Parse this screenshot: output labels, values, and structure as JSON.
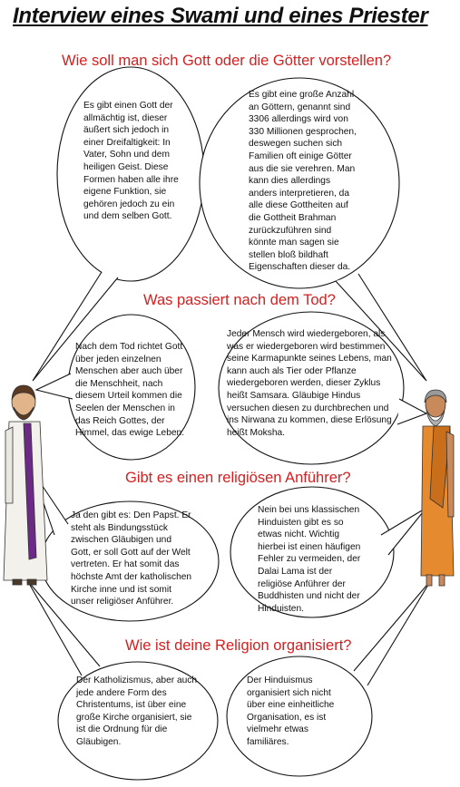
{
  "title": "Interview eines Swami und eines Priester",
  "questions": [
    "Wie soll man sich Gott oder die Götter vorstellen?",
    "Was passiert nach dem Tod?",
    "Gibt es einen religiösen Anführer?",
    "Wie ist deine Religion organisiert?"
  ],
  "answers": {
    "priest_god": "Es gibt einen Gott der allmächtig ist, dieser äußert sich jedoch in einer Dreifaltigkeit: In Vater, Sohn und dem heiligen Geist. Diese Formen haben alle ihre eigene Funktion, sie gehören jedoch zu ein und dem selben Gott.",
    "swami_god": "Es gibt eine große Anzahl an Göttern, genannt sind 3306 allerdings wird von 330 Millionen gesprochen, deswegen suchen sich Familien oft einige Götter aus die sie verehren. Man kann dies allerdings anders interpretieren, da alle diese Gottheiten auf die Gottheit Brahman zurückzuführen sind könnte man sagen sie stellen bloß bildhaft Eigenschaften dieser da.",
    "priest_death": "Nach dem Tod richtet Gott über jeden einzelnen Menschen aber auch über die Menschheit, nach diesem Urteil kommen die Seelen der Menschen in das Reich Gottes, der Himmel, das ewige Leben.",
    "swami_death": "Jeder Mensch wird wiedergeboren, als was er wiedergeboren wird bestimmen seine Karmapunkte seines Lebens, man kann auch als Tier oder Pflanze wiedergeboren werden, dieser Zyklus heißt Samsara. Gläubige Hindus versuchen diesen zu durchbrechen und ins Nirwana zu kommen, diese Erlösung heißt Moksha.",
    "priest_leader": "Ja den gibt es: Den Papst. Er steht als Bindungsstück zwischen Gläubigen und Gott, er soll Gott auf der Welt vertreten. Er hat somit das höchste Amt der katholischen Kirche inne und ist somit unser religiöser Anführer.",
    "swami_leader": "Nein bei uns klassischen Hinduisten gibt es so etwas nicht. Wichtig hierbei ist einen häufigen Fehler zu vermeiden, der Dalai Lama ist der religiöse Anführer der Buddhisten und nicht der Hinduisten.",
    "priest_org": "Der Katholizismus, aber auch jede andere Form des Christentums, ist über eine große Kirche organisiert, sie ist die Ordnung für die Gläubigen.",
    "swami_org": "Der Hinduismus organisiert sich nicht über eine einheitliche Organisation, es ist vielmehr etwas familiäres."
  },
  "colors": {
    "question": "#d42020",
    "robe_purple": "#6b2a86",
    "robe_orange": "#e58a2e",
    "robe_white": "#f2f1ec"
  }
}
